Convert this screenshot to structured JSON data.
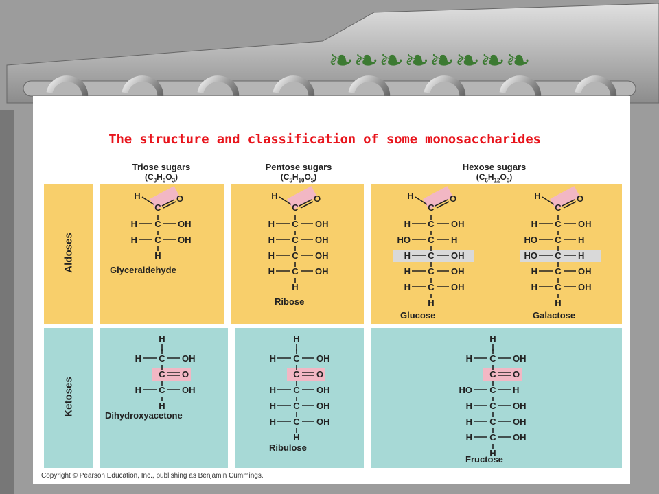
{
  "title": "The structure and classification of some monosaccharides",
  "columns": [
    {
      "name": "Triose sugars",
      "formula": [
        "C",
        "3",
        "H",
        "6",
        "O",
        "3"
      ]
    },
    {
      "name": "Pentose sugars",
      "formula": [
        "C",
        "5",
        "H",
        "10",
        "O",
        "5"
      ]
    },
    {
      "name": "Hexose sugars",
      "formula": [
        "C",
        "6",
        "H",
        "12",
        "O",
        "6"
      ]
    }
  ],
  "rows": {
    "aldoses": "Aldoses",
    "ketoses": "Ketoses"
  },
  "molecules": [
    {
      "name": "Glyceraldehyde",
      "group": "aldose",
      "lines": [
        [
          "H",
          "—",
          "C",
          "—",
          "OH"
        ],
        [
          "H",
          "—",
          "C",
          "—",
          "OH"
        ]
      ],
      "bottom_h": true
    },
    {
      "name": "Ribose",
      "group": "aldose",
      "lines": [
        [
          "H",
          "—",
          "C",
          "—",
          "OH"
        ],
        [
          "H",
          "—",
          "C",
          "—",
          "OH"
        ],
        [
          "H",
          "—",
          "C",
          "—",
          "OH"
        ],
        [
          "H",
          "—",
          "C",
          "—",
          "OH"
        ]
      ],
      "bottom_h": true
    },
    {
      "name": "Glucose",
      "group": "aldose",
      "lines": [
        [
          "H",
          "—",
          "C",
          "—",
          "OH"
        ],
        [
          "HO",
          "—",
          "C",
          "—",
          "H"
        ],
        [
          "H",
          "—",
          "C",
          "—",
          "OH"
        ],
        [
          "H",
          "—",
          "C",
          "—",
          "OH"
        ],
        [
          "H",
          "—",
          "C",
          "—",
          "OH"
        ]
      ],
      "highlight_line": 2,
      "bottom_h": true
    },
    {
      "name": "Galactose",
      "group": "aldose",
      "lines": [
        [
          "H",
          "—",
          "C",
          "—",
          "OH"
        ],
        [
          "HO",
          "—",
          "C",
          "—",
          "H"
        ],
        [
          "HO",
          "—",
          "C",
          "—",
          "H"
        ],
        [
          "H",
          "—",
          "C",
          "—",
          "OH"
        ],
        [
          "H",
          "—",
          "C",
          "—",
          "OH"
        ]
      ],
      "highlight_line": 2,
      "bottom_h": true
    },
    {
      "name": "Dihydroxyacetone",
      "group": "ketose",
      "lines": [
        [
          "H",
          "—",
          "C",
          "—",
          "OH"
        ],
        [
          "",
          "",
          "C",
          "=",
          "O"
        ],
        [
          "H",
          "—",
          "C",
          "—",
          "OH"
        ]
      ],
      "top_h": true,
      "bottom_h": true,
      "carbonyl_line": 1
    },
    {
      "name": "Ribulose",
      "group": "ketose",
      "lines": [
        [
          "H",
          "—",
          "C",
          "—",
          "OH"
        ],
        [
          "",
          "",
          "C",
          "=",
          "O"
        ],
        [
          "H",
          "—",
          "C",
          "—",
          "OH"
        ],
        [
          "H",
          "—",
          "C",
          "—",
          "OH"
        ],
        [
          "H",
          "—",
          "C",
          "—",
          "OH"
        ]
      ],
      "top_h": true,
      "bottom_h": true,
      "carbonyl_line": 1
    },
    {
      "name": "Fructose",
      "group": "ketose",
      "lines": [
        [
          "H",
          "—",
          "C",
          "—",
          "OH"
        ],
        [
          "",
          "",
          "C",
          "=",
          "O"
        ],
        [
          "HO",
          "—",
          "C",
          "—",
          "H"
        ],
        [
          "H",
          "—",
          "C",
          "—",
          "OH"
        ],
        [
          "H",
          "—",
          "C",
          "—",
          "OH"
        ],
        [
          "H",
          "—",
          "C",
          "—",
          "OH"
        ]
      ],
      "top_h": true,
      "bottom_h": true,
      "carbonyl_line": 1
    }
  ],
  "aldehyde_group": {
    "h": "H",
    "c": "C",
    "o": "O"
  },
  "copyright": "Copyright © Pearson Education, Inc., publishing as Benjamin Cummings.",
  "colors": {
    "aldose_bg": "#f8cf6b",
    "ketose_bg": "#a7d9d6",
    "highlight": "#f2b7c4",
    "title": "#e8141c",
    "grey_highlight": "#d9d9d9"
  }
}
